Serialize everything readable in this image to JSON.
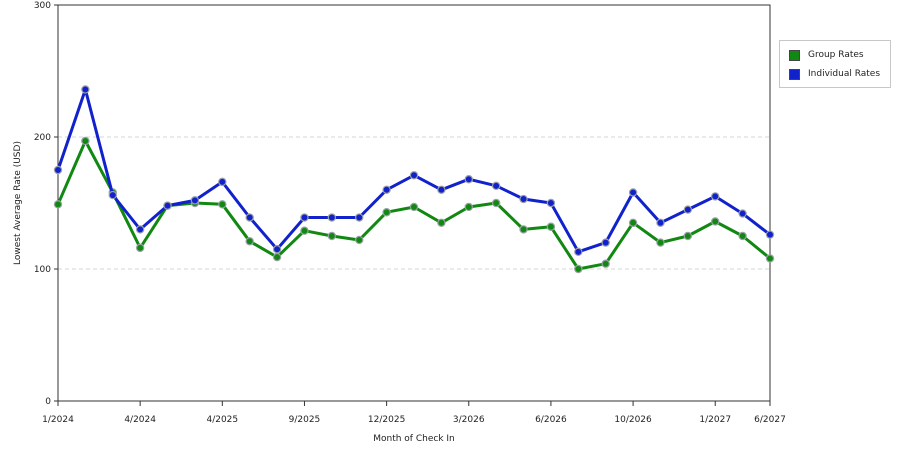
{
  "chart_data": {
    "type": "line",
    "title": "",
    "xlabel": "Month of Check In",
    "ylabel": "Lowest Average Rate (USD)",
    "ylim": [
      0,
      300
    ],
    "yticks": [
      0,
      100,
      200,
      300
    ],
    "grid": "horizontal-dashed",
    "legend_position": "right",
    "x_tick_labels": [
      "1/2024",
      "4/2024",
      "4/2025",
      "9/2025",
      "12/2025",
      "3/2026",
      "6/2026",
      "10/2026",
      "1/2027",
      "6/2027"
    ],
    "x_tick_indices": [
      0,
      3,
      6,
      9,
      12,
      15,
      18,
      21,
      24,
      26
    ],
    "series": [
      {
        "name": "Group Rates",
        "color": "#118811",
        "values": [
          149,
          197,
          158,
          116,
          148,
          150,
          149,
          121,
          109,
          129,
          125,
          122,
          143,
          147,
          135,
          147,
          150,
          130,
          132,
          100,
          104,
          135,
          120,
          125,
          136,
          125,
          108
        ]
      },
      {
        "name": "Individual Rates",
        "color": "#1122cc",
        "values": [
          175,
          236,
          156,
          130,
          148,
          152,
          166,
          139,
          115,
          139,
          139,
          139,
          160,
          171,
          160,
          168,
          163,
          153,
          150,
          113,
          120,
          158,
          135,
          145,
          155,
          142,
          126
        ]
      }
    ]
  }
}
